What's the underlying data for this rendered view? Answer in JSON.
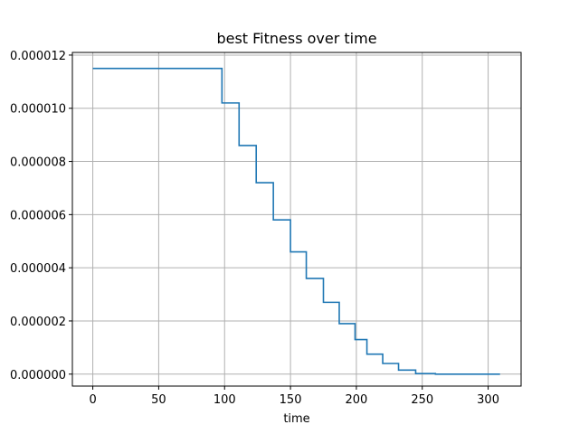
{
  "chart_data": {
    "type": "line",
    "title": "best Fitness over time",
    "xlabel": "time",
    "ylabel": "",
    "xlim": [
      -15.5,
      325
    ],
    "ylim": [
      -4.5e-07,
      1.21e-05
    ],
    "grid": true,
    "x_ticks": [
      0,
      50,
      100,
      150,
      200,
      250,
      300
    ],
    "x_tick_labels": [
      "0",
      "50",
      "100",
      "150",
      "200",
      "250",
      "300"
    ],
    "y_ticks": [
      0,
      2e-06,
      4e-06,
      6e-06,
      8e-06,
      1e-05,
      1.2e-05
    ],
    "y_tick_labels": [
      "0.000000",
      "0.000002",
      "0.000004",
      "0.000006",
      "0.000008",
      "0.000010",
      "0.000012"
    ],
    "series": [
      {
        "color": "#1f77b4",
        "step": true,
        "x": [
          0,
          98,
          111,
          124,
          137,
          150,
          162,
          175,
          187,
          199,
          208,
          220,
          232,
          245,
          260,
          309
        ],
        "y": [
          1.15e-05,
          1.02e-05,
          8.6e-06,
          7.2e-06,
          5.8e-06,
          4.6e-06,
          3.6e-06,
          2.7e-06,
          1.9e-06,
          1.3e-06,
          7.5e-07,
          4e-07,
          1.5e-07,
          2e-08,
          0.0,
          0.0
        ]
      }
    ]
  }
}
